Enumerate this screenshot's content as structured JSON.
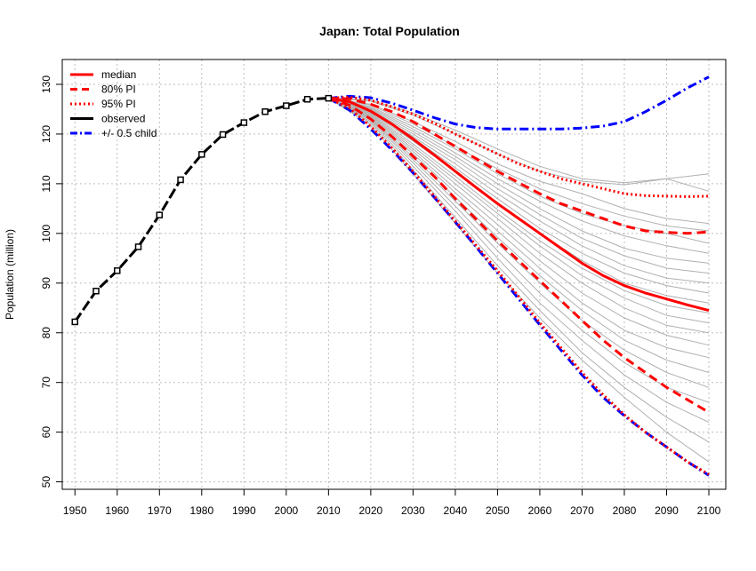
{
  "chart_data": {
    "type": "line",
    "title": "Japan: Total Population",
    "xlabel": "",
    "ylabel": "Population (million)",
    "xlim": [
      1947,
      2104
    ],
    "ylim": [
      48.5,
      135
    ],
    "x_ticks": [
      1950,
      1960,
      1970,
      1980,
      1990,
      2000,
      2010,
      2020,
      2030,
      2040,
      2050,
      2060,
      2070,
      2080,
      2090,
      2100
    ],
    "y_ticks": [
      50,
      60,
      70,
      80,
      90,
      100,
      110,
      120,
      130
    ],
    "grid": true,
    "legend_position": "top-left",
    "colors": {
      "median": "#ff0000",
      "pi80": "#ff0000",
      "pi95": "#ff0000",
      "observed": "#000000",
      "half_child": "#0000ff",
      "trajectory": "#b0b0b0",
      "grid": "#bdbdbd"
    },
    "legend": [
      {
        "key": "median",
        "label": "median"
      },
      {
        "key": "pi80",
        "label": "80% PI"
      },
      {
        "key": "pi95",
        "label": "95% PI"
      },
      {
        "key": "observed",
        "label": "observed"
      },
      {
        "key": "half_child",
        "label": "+/- 0.5 child"
      }
    ],
    "observed": {
      "x": [
        1950,
        1955,
        1960,
        1965,
        1970,
        1975,
        1980,
        1985,
        1990,
        1995,
        2000,
        2005,
        2010
      ],
      "y": [
        82.2,
        88.4,
        92.5,
        97.3,
        103.7,
        110.8,
        115.9,
        119.9,
        122.3,
        124.5,
        125.7,
        127.0,
        127.2
      ]
    },
    "median": {
      "x": [
        2010,
        2015,
        2020,
        2025,
        2030,
        2035,
        2040,
        2045,
        2050,
        2055,
        2060,
        2065,
        2070,
        2075,
        2080,
        2085,
        2090,
        2095,
        2100
      ],
      "y": [
        127.2,
        126.5,
        124.6,
        122.0,
        119.0,
        115.8,
        112.5,
        109.2,
        106.0,
        103.0,
        100.0,
        97.0,
        94.0,
        91.5,
        89.5,
        88.0,
        86.8,
        85.6,
        84.5
      ]
    },
    "pi80": [
      {
        "x": [
          2010,
          2015,
          2020,
          2025,
          2030,
          2035,
          2040,
          2045,
          2050,
          2055,
          2060,
          2065,
          2070,
          2075,
          2080,
          2085,
          2090,
          2095,
          2100
        ],
        "y": [
          127.2,
          127.1,
          126.0,
          124.5,
          122.5,
          120.0,
          117.5,
          115.0,
          112.5,
          110.2,
          108.0,
          106.0,
          104.5,
          103.0,
          101.5,
          100.5,
          100.2,
          100.0,
          100.3
        ]
      },
      {
        "x": [
          2010,
          2015,
          2020,
          2025,
          2030,
          2035,
          2040,
          2045,
          2050,
          2055,
          2060,
          2065,
          2070,
          2075,
          2080,
          2085,
          2090,
          2095,
          2100
        ],
        "y": [
          127.2,
          125.8,
          123.0,
          119.5,
          115.5,
          111.5,
          107.0,
          102.8,
          98.5,
          94.5,
          90.5,
          86.5,
          82.5,
          78.5,
          75.0,
          72.0,
          69.0,
          66.5,
          64.0
        ]
      }
    ],
    "pi95": [
      {
        "x": [
          2010,
          2015,
          2020,
          2025,
          2030,
          2035,
          2040,
          2045,
          2050,
          2055,
          2060,
          2065,
          2070,
          2075,
          2080,
          2085,
          2090,
          2095,
          2100
        ],
        "y": [
          127.2,
          127.4,
          126.8,
          125.5,
          124.0,
          122.2,
          120.0,
          118.0,
          116.0,
          114.0,
          112.5,
          111.0,
          110.0,
          109.0,
          108.0,
          107.6,
          107.5,
          107.4,
          107.5
        ]
      },
      {
        "x": [
          2010,
          2015,
          2020,
          2025,
          2030,
          2035,
          2040,
          2045,
          2050,
          2055,
          2060,
          2065,
          2070,
          2075,
          2080,
          2085,
          2090,
          2095,
          2100
        ],
        "y": [
          127.2,
          125.2,
          121.5,
          117.2,
          112.5,
          107.5,
          102.5,
          97.5,
          92.5,
          87.3,
          82.0,
          77.0,
          72.0,
          67.5,
          63.5,
          60.0,
          57.0,
          54.0,
          51.5
        ]
      }
    ],
    "half_child": [
      {
        "x": [
          2010,
          2015,
          2020,
          2025,
          2030,
          2035,
          2040,
          2045,
          2050,
          2055,
          2060,
          2065,
          2070,
          2075,
          2080,
          2085,
          2090,
          2095,
          2100
        ],
        "y": [
          127.2,
          127.6,
          127.3,
          126.2,
          124.8,
          123.3,
          122.0,
          121.3,
          121.0,
          121.0,
          121.0,
          121.0,
          121.2,
          121.6,
          122.5,
          124.5,
          126.8,
          129.3,
          131.5
        ]
      },
      {
        "x": [
          2010,
          2015,
          2020,
          2025,
          2030,
          2035,
          2040,
          2045,
          2050,
          2055,
          2060,
          2065,
          2070,
          2075,
          2080,
          2085,
          2090,
          2095,
          2100
        ],
        "y": [
          127.2,
          124.8,
          121.0,
          116.8,
          112.2,
          107.3,
          102.3,
          97.2,
          92.0,
          86.8,
          81.6,
          76.5,
          71.5,
          67.0,
          63.3,
          60.0,
          57.0,
          54.0,
          51.3
        ]
      }
    ],
    "trajectories_x": [
      2010,
      2020,
      2030,
      2040,
      2050,
      2060,
      2070,
      2080,
      2090,
      2100
    ],
    "trajectories": [
      [
        127.2,
        126.8,
        124.2,
        120.8,
        117.0,
        113.5,
        111.0,
        110.2,
        111.0,
        112.0
      ],
      [
        127.2,
        126.6,
        123.8,
        120.0,
        116.0,
        112.5,
        110.5,
        109.8,
        111.0,
        108.5
      ],
      [
        127.2,
        126.0,
        122.5,
        118.5,
        114.0,
        110.5,
        108.0,
        105.0,
        103.0,
        102.0
      ],
      [
        127.2,
        125.8,
        122.0,
        117.5,
        113.0,
        109.0,
        106.0,
        103.5,
        101.5,
        100.5
      ],
      [
        127.2,
        125.5,
        121.5,
        117.0,
        112.0,
        107.5,
        104.0,
        101.5,
        100.0,
        98.0
      ],
      [
        127.2,
        125.3,
        121.0,
        116.2,
        111.0,
        106.5,
        102.5,
        99.5,
        97.5,
        96.0
      ],
      [
        127.2,
        125.1,
        120.5,
        115.5,
        110.0,
        105.0,
        100.5,
        97.0,
        95.0,
        94.0
      ],
      [
        127.2,
        124.9,
        120.0,
        114.8,
        109.0,
        103.8,
        99.0,
        95.5,
        93.0,
        92.0
      ],
      [
        127.2,
        124.7,
        119.5,
        114.0,
        108.0,
        102.5,
        97.5,
        93.5,
        91.0,
        90.0
      ],
      [
        127.2,
        124.6,
        119.2,
        113.2,
        107.0,
        101.0,
        96.0,
        92.0,
        89.5,
        88.0
      ],
      [
        127.2,
        124.4,
        118.6,
        112.5,
        106.0,
        100.0,
        94.5,
        90.0,
        87.5,
        86.0
      ],
      [
        127.2,
        124.2,
        118.0,
        111.5,
        104.8,
        98.5,
        93.0,
        88.5,
        85.5,
        84.0
      ],
      [
        127.2,
        124.0,
        117.5,
        110.8,
        104.0,
        97.5,
        91.5,
        87.0,
        83.5,
        82.0
      ],
      [
        127.2,
        123.8,
        117.0,
        110.0,
        103.0,
        96.0,
        90.0,
        85.0,
        81.5,
        80.0
      ],
      [
        127.2,
        123.6,
        116.5,
        109.0,
        101.8,
        94.5,
        88.0,
        83.0,
        79.5,
        77.5
      ],
      [
        127.2,
        123.4,
        116.0,
        108.2,
        100.5,
        93.0,
        86.0,
        80.5,
        77.0,
        75.0
      ],
      [
        127.2,
        123.2,
        115.4,
        107.3,
        99.2,
        91.5,
        84.5,
        78.5,
        74.5,
        72.0
      ],
      [
        127.2,
        123.0,
        114.8,
        106.5,
        98.0,
        90.0,
        82.5,
        76.5,
        72.0,
        69.0
      ],
      [
        127.2,
        122.8,
        114.2,
        105.5,
        96.5,
        88.0,
        80.5,
        74.0,
        69.0,
        66.0
      ],
      [
        127.2,
        122.5,
        113.5,
        104.5,
        95.0,
        86.0,
        78.5,
        71.5,
        66.0,
        62.0
      ],
      [
        127.2,
        122.2,
        112.8,
        103.2,
        93.5,
        84.5,
        76.0,
        69.0,
        63.0,
        58.0
      ],
      [
        127.2,
        121.8,
        112.0,
        102.0,
        92.0,
        83.0,
        74.5,
        67.0,
        60.0,
        54.0
      ]
    ]
  }
}
